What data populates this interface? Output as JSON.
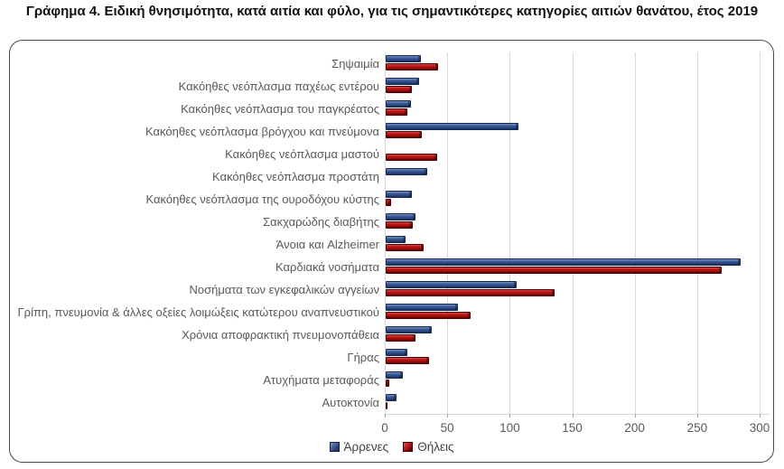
{
  "title": "Γράφημα 4. Ειδική θνησιμότητα, κατά αιτία και φύλο, για τις σημαντικότερες κατηγορίες αιτιών θανάτου, έτος 2019",
  "chart_data": {
    "type": "bar",
    "orientation": "horizontal",
    "title": "Γράφημα 4. Ειδική θνησιμότητα, κατά αιτία και φύλο, για τις σημαντικότερες κατηγορίες αιτιών θανάτου, έτος 2019",
    "categories": [
      "Σηψαιμία",
      "Κακόηθες νεόπλασμα παχέως εντέρου",
      "Κακόηθες νεόπλασμα του παγκρέατος",
      "Κακόηθες νεόπλασμα βρόγχου και πνεύμονα",
      "Κακόηθες νεόπλασμα μαστού",
      "Κακόηθες νεόπλασμα προστάτη",
      "Κακόηθες νεόπλασμα της ουροδόχου κύστης",
      "Σακχαρώδης διαβήτης",
      "Άνοια και Alzheimer",
      "Καρδιακά νοσήματα",
      "Νοσήματα των εγκεφαλικών αγγείων",
      "Γρίπη, πνευμονία & άλλες οξείες λοιμώξεις κατώτερου αναπνευστικού",
      "Χρόνια αποφρακτική πνευμονοπάθεια",
      "Γήρας",
      "Ατυχήματα μεταφοράς",
      "Αυτοκτονία"
    ],
    "series": [
      {
        "name": "Άρρενες",
        "color": "#2F4E8F",
        "values": [
          28,
          27,
          20,
          106,
          0,
          33,
          21,
          24,
          16,
          284,
          105,
          58,
          37,
          17,
          14,
          9
        ]
      },
      {
        "name": "Θήλεις",
        "color": "#B01111",
        "values": [
          42,
          21,
          17,
          29,
          41,
          0,
          4,
          22,
          30,
          269,
          135,
          68,
          24,
          35,
          3,
          1.5
        ]
      }
    ],
    "xlim": [
      0,
      300
    ],
    "xticks": [
      0,
      50,
      100,
      150,
      200,
      250,
      300
    ],
    "grid": true,
    "legend_position": "bottom"
  }
}
